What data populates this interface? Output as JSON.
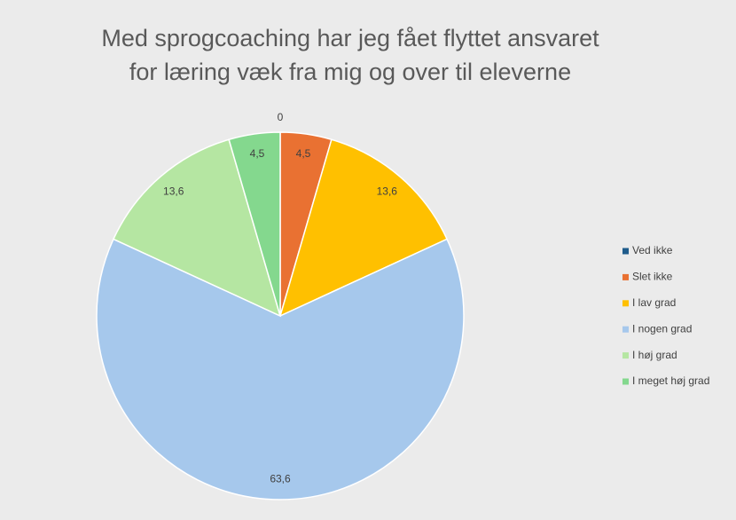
{
  "chart_data": {
    "type": "pie",
    "title": [
      "Med sprogcoaching har jeg fået flyttet ansvaret",
      "for læring væk fra mig og over til eleverne"
    ],
    "categories": [
      "Ved ikke",
      "Slet ikke",
      "I lav grad",
      "I nogen grad",
      "I høj grad",
      "I meget høj grad"
    ],
    "values": [
      0,
      4.5,
      13.6,
      63.6,
      13.6,
      4.5
    ],
    "value_labels": [
      "0",
      "4,5",
      "13,6",
      "63,6",
      "13,6",
      "4,5"
    ],
    "colors": [
      "#1f5c8b",
      "#e97132",
      "#ffc000",
      "#a6c8ec",
      "#b5e6a2",
      "#84d88e"
    ],
    "legend": "right"
  }
}
